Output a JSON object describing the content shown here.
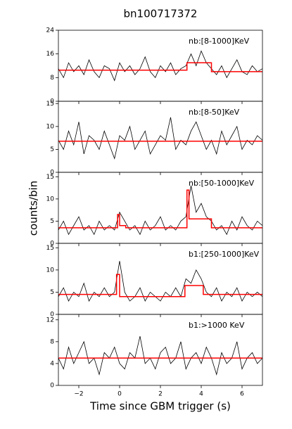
{
  "chart_data": {
    "type": "line",
    "title": "bn100717372",
    "xlabel": "Time since GBM trigger (s)",
    "ylabel": "counts/bin",
    "color": "#000000",
    "block_color": "#ff0000",
    "xlim": [
      -3,
      7
    ],
    "xticks": [
      {
        "value": -2,
        "label": "−2"
      },
      0,
      2,
      4,
      6
    ],
    "x": [
      -3,
      -2.75,
      -2.5,
      -2.25,
      -2,
      -1.75,
      -1.5,
      -1.25,
      -1,
      -0.75,
      -0.5,
      -0.25,
      0,
      0.25,
      0.5,
      0.75,
      1,
      1.25,
      1.5,
      1.75,
      2,
      2.25,
      2.5,
      2.75,
      3,
      3.25,
      3.5,
      3.75,
      4,
      4.25,
      4.5,
      4.75,
      5,
      5.25,
      5.5,
      5.75,
      6,
      6.25,
      6.5,
      6.75,
      7
    ],
    "panels": [
      {
        "label": "nb:[8-1000]KeV",
        "ylim": [
          0,
          24
        ],
        "yticks": [
          0,
          8,
          16,
          24
        ],
        "values": [
          11,
          8,
          13,
          10,
          12,
          9,
          14,
          10,
          8,
          12,
          11,
          7,
          13,
          10,
          12,
          9,
          11,
          15,
          10,
          8,
          12,
          10,
          13,
          9,
          11,
          12,
          16,
          12,
          17,
          13,
          11,
          9,
          12,
          8,
          11,
          14,
          10,
          9,
          12,
          10,
          11
        ],
        "blocks_x": [
          -3,
          3.3,
          3.3,
          4.5,
          4.5,
          7
        ],
        "blocks": [
          10.5,
          10.5,
          13,
          13,
          10,
          10
        ]
      },
      {
        "label": "nb:[8-50]KeV",
        "ylim": [
          0,
          15.5
        ],
        "yticks": [
          0,
          5,
          10,
          15
        ],
        "values": [
          7,
          5,
          9,
          6,
          11,
          4,
          8,
          7,
          5,
          9,
          6,
          3,
          8,
          7,
          10,
          5,
          7,
          9,
          4,
          6,
          8,
          7,
          12,
          5,
          7,
          6,
          9,
          11,
          8,
          5,
          7,
          4,
          9,
          6,
          8,
          10,
          5,
          7,
          6,
          8,
          7
        ],
        "blocks_x": [
          -3,
          7
        ],
        "blocks": [
          6.8,
          6.8
        ]
      },
      {
        "label": "nb:[50-1000]KeV",
        "ylim": [
          0,
          16
        ],
        "yticks": [
          0,
          5,
          10,
          15
        ],
        "values": [
          3,
          5,
          2,
          4,
          6,
          3,
          4,
          2,
          5,
          3,
          4,
          3,
          7,
          5,
          3,
          4,
          2,
          5,
          3,
          4,
          6,
          3,
          4,
          3,
          5,
          6,
          13,
          7,
          9,
          6,
          5,
          3,
          4,
          2,
          5,
          3,
          6,
          4,
          3,
          5,
          4
        ],
        "blocks_x": [
          -3,
          -0.1,
          -0.1,
          0,
          0,
          0.3,
          0.3,
          3.3,
          3.3,
          3.4,
          3.4,
          4.5,
          4.5,
          7
        ],
        "blocks": [
          3.5,
          3.5,
          6.5,
          6.5,
          4,
          4,
          3.5,
          3.5,
          12,
          12,
          5.5,
          5.5,
          3.5,
          3.5
        ]
      },
      {
        "label": "b1:[250-1000]KeV",
        "ylim": [
          0,
          16
        ],
        "yticks": [
          0,
          5,
          10,
          15
        ],
        "values": [
          4,
          6,
          3,
          5,
          4,
          7,
          3,
          5,
          4,
          6,
          4,
          5,
          12,
          5,
          3,
          4,
          6,
          3,
          5,
          4,
          3,
          5,
          4,
          6,
          4,
          8,
          7,
          10,
          8,
          5,
          4,
          6,
          3,
          5,
          4,
          6,
          3,
          5,
          4,
          5,
          4
        ],
        "blocks_x": [
          -3,
          -0.15,
          -0.15,
          0,
          0,
          3.2,
          3.2,
          4.1,
          4.1,
          7
        ],
        "blocks": [
          4.5,
          4.5,
          9,
          9,
          4,
          4,
          6.5,
          6.5,
          4.5,
          4.5
        ]
      },
      {
        "label": "b1:>1000 KeV",
        "ylim": [
          0,
          13
        ],
        "yticks": [
          0,
          4,
          8,
          12
        ],
        "values": [
          5,
          3,
          7,
          4,
          6,
          8,
          4,
          5,
          2,
          6,
          5,
          7,
          4,
          3,
          6,
          5,
          9,
          4,
          5,
          3,
          6,
          7,
          4,
          5,
          8,
          3,
          5,
          6,
          4,
          7,
          5,
          2,
          6,
          4,
          5,
          8,
          3,
          5,
          6,
          4,
          5
        ],
        "blocks_x": [
          -3,
          7
        ],
        "blocks": [
          5,
          5
        ]
      }
    ]
  }
}
